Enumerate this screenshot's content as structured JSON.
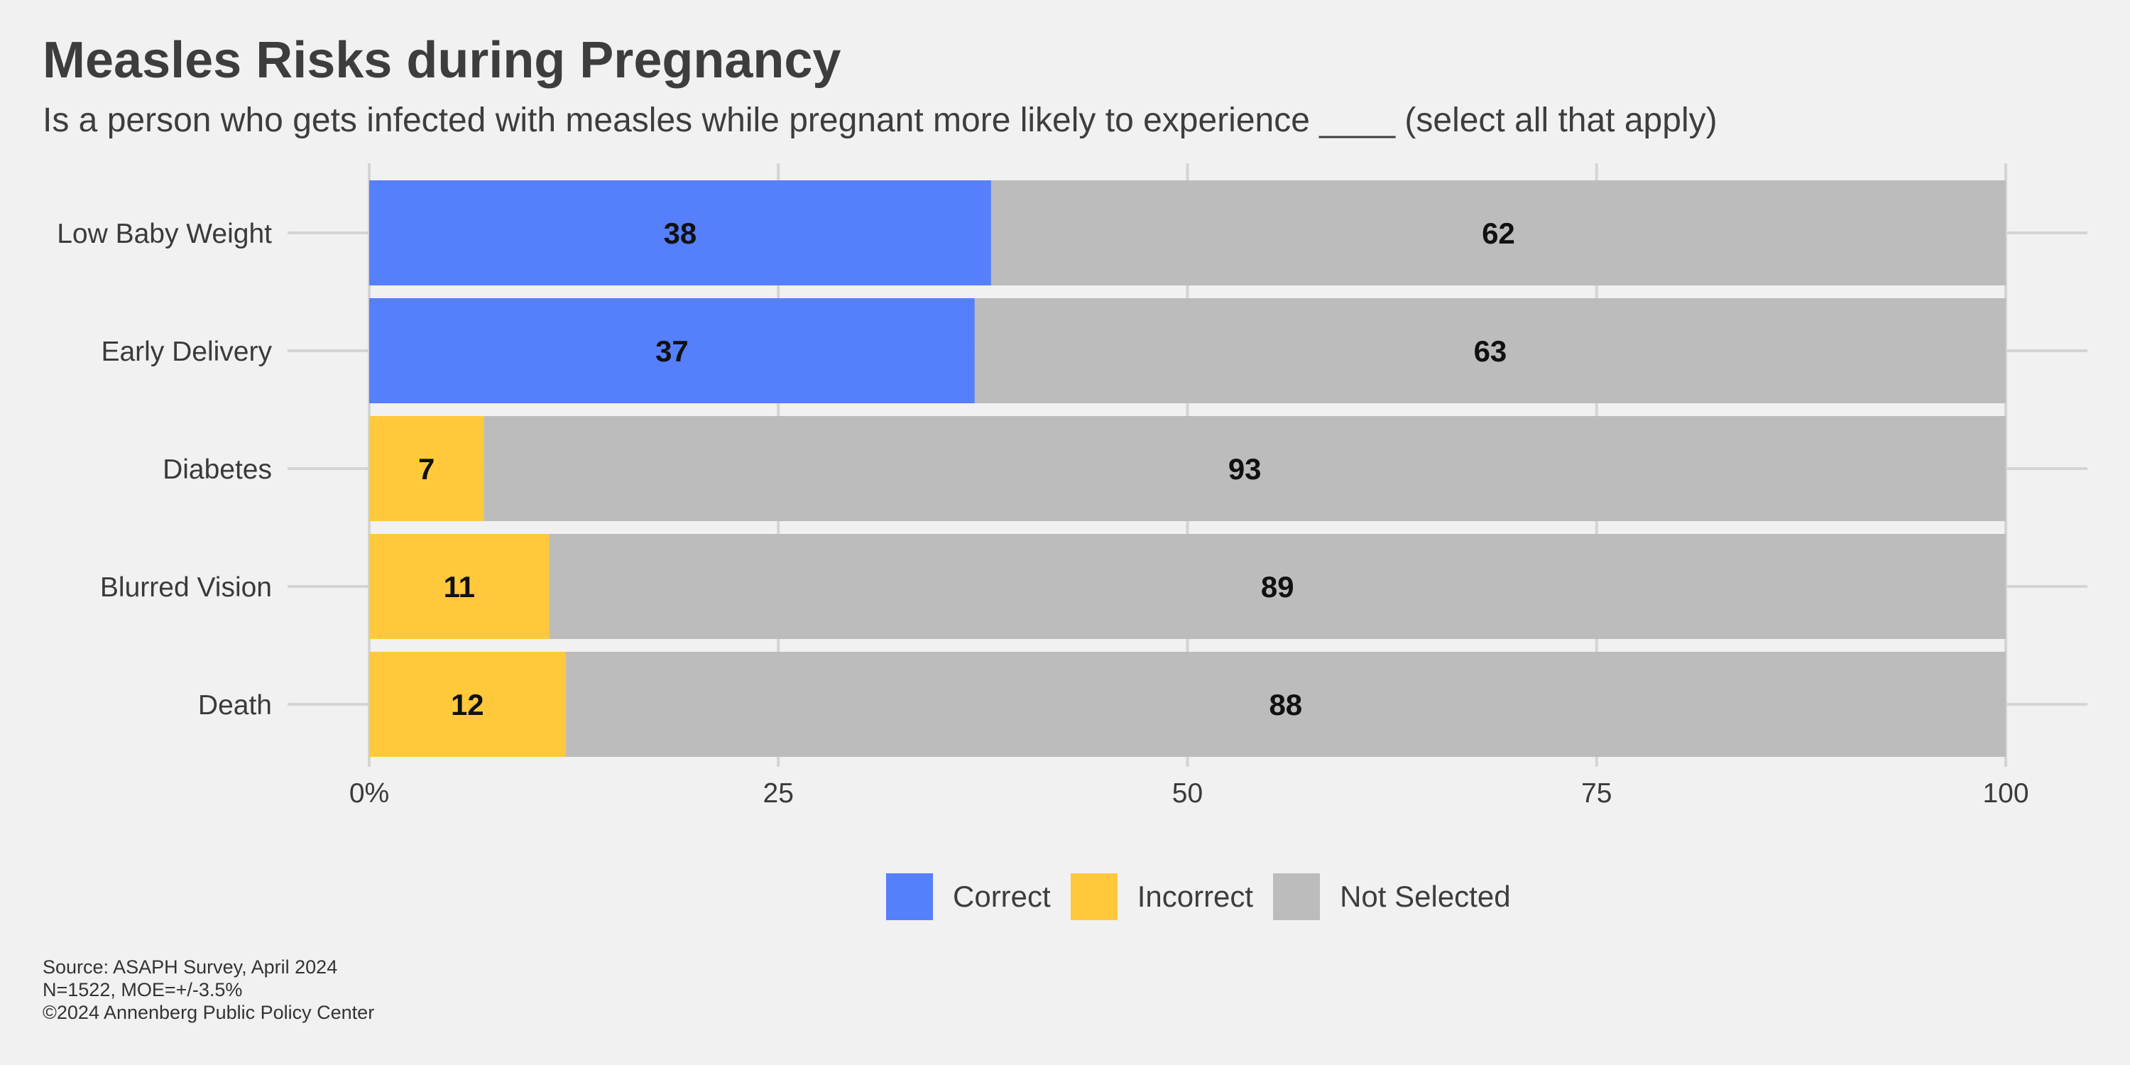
{
  "header": {
    "title": "Measles Risks during Pregnancy",
    "subtitle": "Is a person who gets infected with measles while pregnant more likely to experience ____ (select all that apply)"
  },
  "chart_data": {
    "type": "bar",
    "orientation": "horizontal",
    "stacked": true,
    "title": "Measles Risks during Pregnancy",
    "subtitle": "Is a person who gets infected with measles while pregnant more likely to experience ____ (select all that apply)",
    "xlabel": "",
    "ylabel": "",
    "xlim": [
      0,
      100
    ],
    "x_ticks": [
      0,
      25,
      50,
      75,
      100
    ],
    "x_tick_labels": [
      "0%",
      "25",
      "50",
      "75",
      "100"
    ],
    "grid": true,
    "legend_position": "bottom",
    "categories": [
      "Low Baby Weight",
      "Early Delivery",
      "Diabetes",
      "Blurred Vision",
      "Death"
    ],
    "rows": [
      {
        "category": "Low Baby Weight",
        "answer": "Correct",
        "selected": 38,
        "not_selected": 62
      },
      {
        "category": "Early Delivery",
        "answer": "Correct",
        "selected": 37,
        "not_selected": 63
      },
      {
        "category": "Diabetes",
        "answer": "Incorrect",
        "selected": 7,
        "not_selected": 93
      },
      {
        "category": "Blurred Vision",
        "answer": "Incorrect",
        "selected": 11,
        "not_selected": 89
      },
      {
        "category": "Death",
        "answer": "Incorrect",
        "selected": 12,
        "not_selected": 88
      }
    ],
    "legend": [
      {
        "name": "Correct",
        "color": "#557ffb"
      },
      {
        "name": "Incorrect",
        "color": "#ffc93b"
      },
      {
        "name": "Not Selected",
        "color": "#bcbcbc"
      }
    ]
  },
  "legend": {
    "correct": "Correct",
    "incorrect": "Incorrect",
    "not_selected": "Not Selected"
  },
  "colors": {
    "correct": "#557ffb",
    "incorrect": "#ffc93b",
    "not_selected": "#bcbcbc",
    "background": "#f1f1f1",
    "grid": "#d4d4d4"
  },
  "caption": {
    "source": "Source: ASAPH Survey, April 2024",
    "sample": "N=1522, MOE=+/-3.5%",
    "copyright": "©2024 Annenberg Public Policy Center"
  }
}
